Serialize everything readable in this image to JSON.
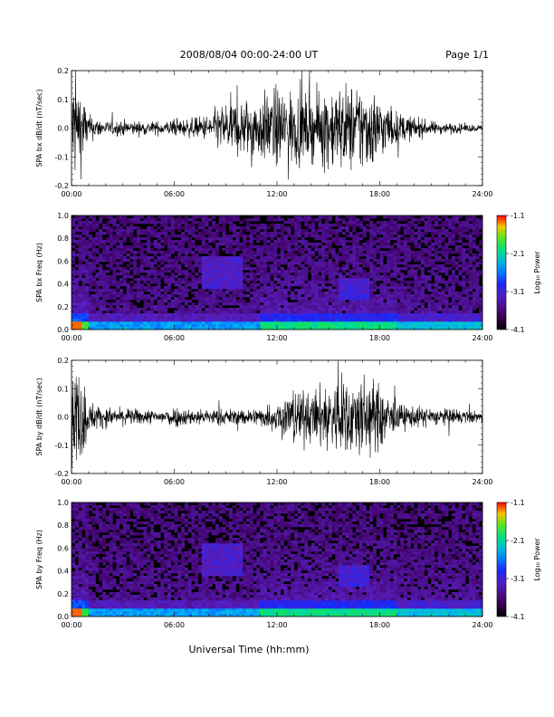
{
  "header": {
    "title": "2008/08/04  00:00-24:00 UT",
    "page": "Page 1/1"
  },
  "chart_data": [
    {
      "type": "line",
      "ylabel": "SPA bx dB/dt (nT/sec)",
      "xlim": [
        0,
        24
      ],
      "ylim": [
        -0.2,
        0.2
      ],
      "yticks": [
        "-0.2",
        "-0.1",
        "0.0",
        "0.1",
        "0.2"
      ],
      "xtick_labels": [
        "00:00",
        "06:00",
        "12:00",
        "18:00",
        "24:00"
      ],
      "envelope": {
        "hours": [
          0,
          0.3,
          0.7,
          1,
          2,
          3,
          4,
          5,
          6,
          7,
          8,
          9,
          10,
          11,
          12,
          13,
          14,
          15,
          16,
          17,
          18,
          19,
          20,
          21,
          22,
          23,
          24
        ],
        "amplitude": [
          0.2,
          0.2,
          0.12,
          0.05,
          0.025,
          0.03,
          0.025,
          0.025,
          0.03,
          0.035,
          0.05,
          0.1,
          0.11,
          0.12,
          0.15,
          0.14,
          0.11,
          0.16,
          0.16,
          0.17,
          0.12,
          0.06,
          0.04,
          0.025,
          0.02,
          0.015,
          0.012
        ]
      }
    },
    {
      "type": "heatmap",
      "ylabel": "SPA bx Freq (Hz)",
      "xlim": [
        0,
        24
      ],
      "ylim": [
        0,
        1.0
      ],
      "yticks": [
        "0.0",
        "0.2",
        "0.4",
        "0.6",
        "0.8",
        "1.0"
      ],
      "xtick_labels": [
        "00:00",
        "06:00",
        "12:00",
        "18:00",
        "24:00"
      ],
      "colorbar": {
        "label": "Log₁₀ Power",
        "ticks": [
          "-1.1",
          "-2.1",
          "-3.1",
          "-4.1"
        ]
      }
    },
    {
      "type": "line",
      "ylabel": "SPA by dB/dt (nT/sec)",
      "xlim": [
        0,
        24
      ],
      "ylim": [
        -0.2,
        0.2
      ],
      "yticks": [
        "-0.2",
        "-0.1",
        "0.0",
        "0.1",
        "0.2"
      ],
      "xtick_labels": [
        "00:00",
        "06:00",
        "12:00",
        "18:00",
        "24:00"
      ],
      "envelope": {
        "hours": [
          0,
          0.3,
          0.7,
          1,
          2,
          3,
          4,
          5,
          6,
          7,
          8,
          9,
          10,
          11,
          12,
          13,
          14,
          15,
          16,
          17,
          18,
          19,
          20,
          21,
          22,
          23,
          24
        ],
        "amplitude": [
          0.2,
          0.2,
          0.15,
          0.06,
          0.035,
          0.03,
          0.03,
          0.025,
          0.04,
          0.03,
          0.03,
          0.03,
          0.03,
          0.035,
          0.06,
          0.11,
          0.09,
          0.14,
          0.14,
          0.16,
          0.12,
          0.05,
          0.04,
          0.035,
          0.03,
          0.025,
          0.02
        ]
      }
    },
    {
      "type": "heatmap",
      "ylabel": "SPA by Freq (Hz)",
      "xlim": [
        0,
        24
      ],
      "ylim": [
        0,
        1.0
      ],
      "yticks": [
        "0.0",
        "0.2",
        "0.4",
        "0.6",
        "0.8",
        "1.0"
      ],
      "xtick_labels": [
        "00:00",
        "06:00",
        "12:00",
        "18:00",
        "24:00"
      ],
      "colorbar": {
        "label": "Log₁₀ Power",
        "ticks": [
          "-1.1",
          "-2.1",
          "-3.1",
          "-4.1"
        ]
      }
    }
  ],
  "xlabel": "Universal Time (hh:mm)"
}
